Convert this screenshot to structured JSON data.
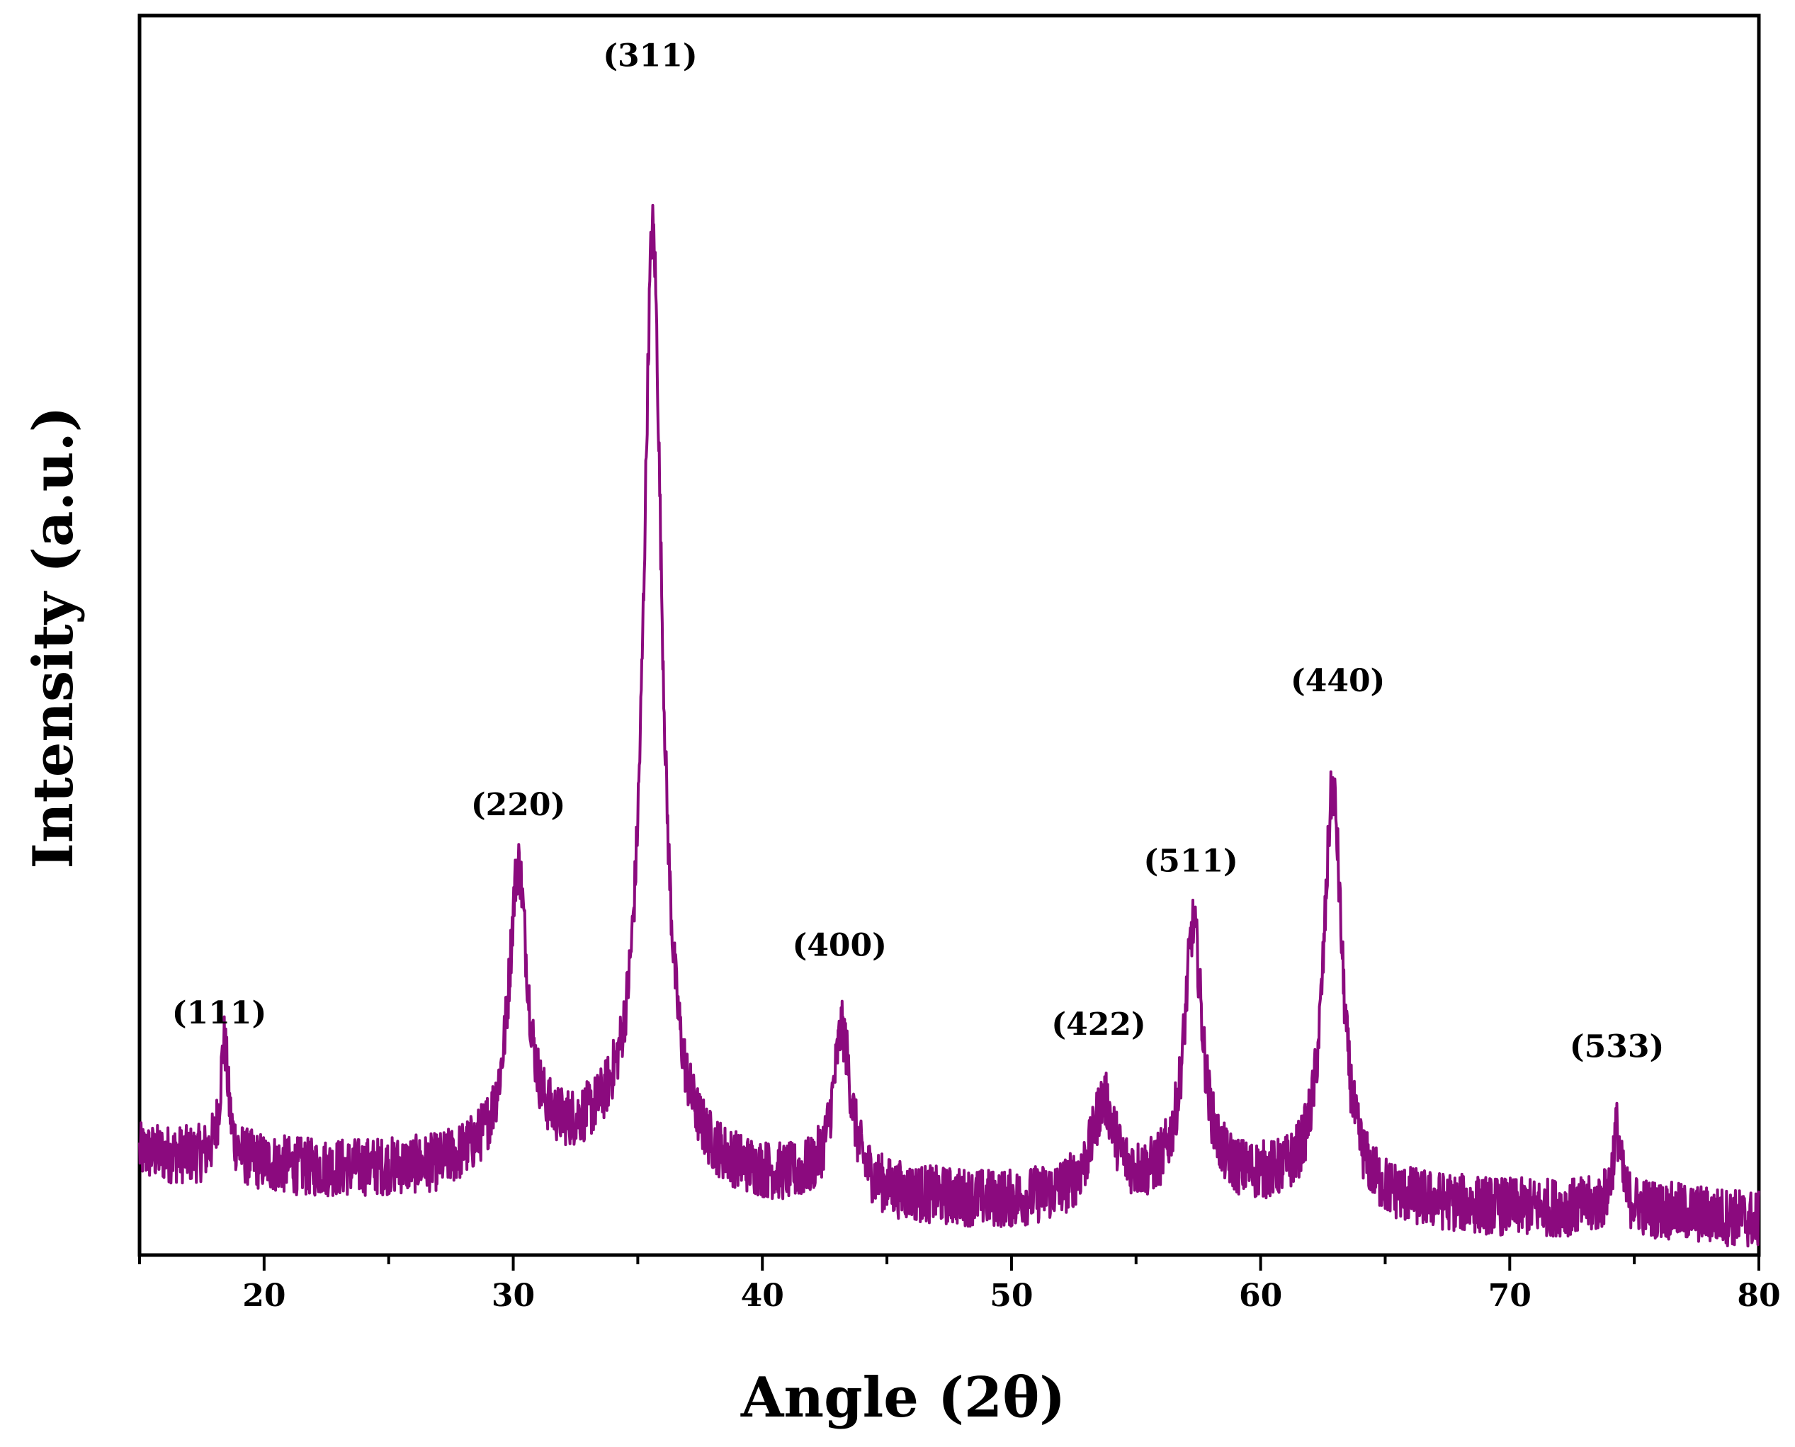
{
  "chart_data": {
    "type": "line",
    "title": "",
    "xlabel": "Angle (2θ)",
    "ylabel": "Intensity (a.u.)",
    "xlim": [
      15,
      80
    ],
    "ylim": [
      0,
      100
    ],
    "x_ticks": [
      20,
      30,
      40,
      50,
      60,
      70,
      80
    ],
    "x_minor_step": 5,
    "y_ticks_shown": false,
    "grid": false,
    "legend": "none",
    "line_color": "#8b0a7e",
    "series": [
      {
        "baseline": [
          [
            15,
            8
          ],
          [
            22,
            6.5
          ],
          [
            27,
            6.5
          ],
          [
            30,
            8
          ],
          [
            34,
            9
          ],
          [
            38,
            6
          ],
          [
            45,
            4
          ],
          [
            50,
            3.5
          ],
          [
            55,
            4.5
          ],
          [
            60,
            5
          ],
          [
            65,
            3.5
          ],
          [
            70,
            3
          ],
          [
            75,
            3
          ],
          [
            80,
            2
          ]
        ],
        "noise_amplitude": 2.6,
        "peaks": [
          {
            "hkl": "(111)",
            "x": 18.4,
            "height": 10.5,
            "width": 0.2
          },
          {
            "hkl": "(220)",
            "x": 30.2,
            "height": 25.0,
            "width": 0.45
          },
          {
            "hkl": "(311)",
            "x": 35.6,
            "height": 82.0,
            "width": 0.45
          },
          {
            "hkl": "(400)",
            "x": 43.2,
            "height": 14.0,
            "width": 0.45
          },
          {
            "hkl": "(422)",
            "x": 53.7,
            "height": 8.0,
            "width": 0.55
          },
          {
            "hkl": "(511)",
            "x": 57.3,
            "height": 23.0,
            "width": 0.45
          },
          {
            "hkl": "(440)",
            "x": 62.9,
            "height": 36.0,
            "width": 0.45
          },
          {
            "hkl": "(533)",
            "x": 74.3,
            "height": 7.0,
            "width": 0.2
          }
        ]
      }
    ],
    "annotations": [
      {
        "text": "(111)",
        "x": 18.2,
        "y": 19.5
      },
      {
        "text": "(220)",
        "x": 30.2,
        "y": 38.0
      },
      {
        "text": "(311)",
        "x": 35.5,
        "y": 104.5
      },
      {
        "text": "(400)",
        "x": 43.1,
        "y": 25.5
      },
      {
        "text": "(422)",
        "x": 53.5,
        "y": 18.5
      },
      {
        "text": "(511)",
        "x": 57.2,
        "y": 33.0
      },
      {
        "text": "(440)",
        "x": 63.1,
        "y": 49.0
      },
      {
        "text": "(533)",
        "x": 74.3,
        "y": 16.5
      }
    ]
  }
}
